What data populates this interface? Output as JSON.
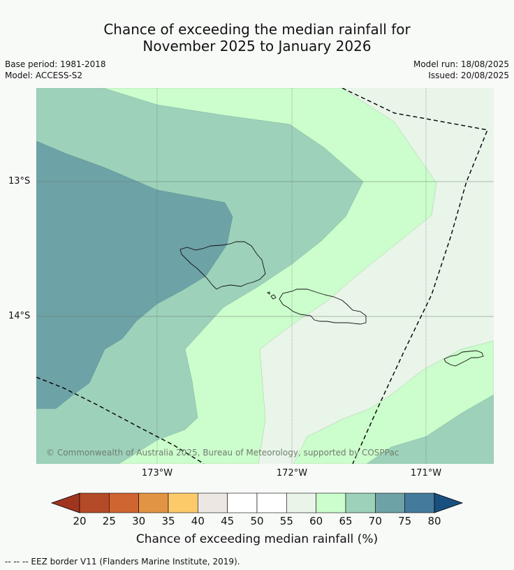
{
  "title_line1": "Chance of exceeding the median rainfall for",
  "title_line2": "November 2025 to January 2026",
  "base_period": "Base period: 1981-2018",
  "model": "Model: ACCESS-S2",
  "model_run": "Model run: 18/08/2025",
  "issued": "Issued: 20/08/2025",
  "copyright": "© Commonwealth of Australia 2025, Bureau of Meteorology, supported by COSPPac",
  "lat_labels": [
    "13°S",
    "14°S"
  ],
  "lon_labels": [
    "173°W",
    "172°W",
    "171°W"
  ],
  "colorbar": {
    "ticks": [
      "20",
      "25",
      "30",
      "35",
      "40",
      "45",
      "50",
      "55",
      "60",
      "65",
      "70",
      "75",
      "80"
    ],
    "colors": [
      "#a0351f",
      "#b44a28",
      "#cf6530",
      "#e29445",
      "#fdca6a",
      "#ece7e3",
      "#ffffff",
      "#ffffff",
      "#e9f5e9",
      "#ccfdcc",
      "#9dd1ba",
      "#6da2a6",
      "#447a9b",
      "#19507f"
    ],
    "title": "Chance of exceeding median rainfall (%)"
  },
  "footnote": "--  --  -- EEZ border V11 (Flanders Marine Institute, 2019)."
}
